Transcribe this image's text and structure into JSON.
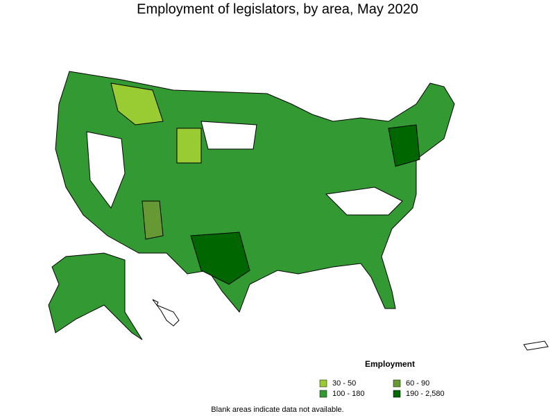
{
  "title": "Employment of legislators, by area, May 2020",
  "legend": {
    "title": "Employment",
    "items": [
      {
        "label": "30 - 50",
        "color": "#99cc33"
      },
      {
        "label": "60 - 90",
        "color": "#669933"
      },
      {
        "label": "100 - 180",
        "color": "#339933"
      },
      {
        "label": "190 - 2,580",
        "color": "#006600"
      }
    ]
  },
  "note": "Blank areas indicate data not available."
}
